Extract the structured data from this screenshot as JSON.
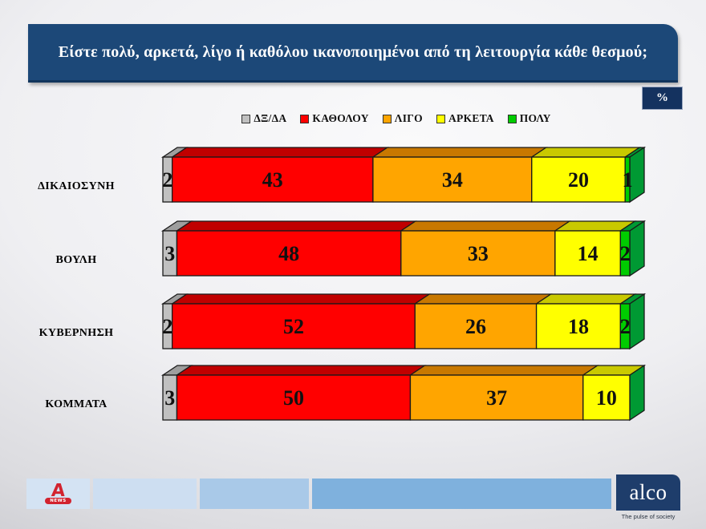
{
  "title": "Είστε πολύ, αρκετά, λίγο ή καθόλου ικανοποιημένοι από τη λειτουργία κάθε θεσμού;",
  "percent_label": "%",
  "chart_data": {
    "type": "bar",
    "subtype": "horizontal-stacked-3d",
    "xlim": [
      0,
      100
    ],
    "legend_position": "top-center",
    "categories": [
      "ΔΙΚΑΙΟΣΥΝΗ",
      "ΒΟΥΛΗ",
      "ΚΥΒΕΡΝΗΣΗ",
      "ΚΟΜΜΑΤΑ"
    ],
    "series": [
      {
        "name": "ΔΞ/ΔΑ",
        "color": "#C0C0C0",
        "dark": "#9e9e9e",
        "values": [
          2,
          3,
          2,
          3
        ]
      },
      {
        "name": "ΚΑΘΟΛΟΥ",
        "color": "#FF0000",
        "dark": "#C00000",
        "values": [
          43,
          48,
          52,
          50
        ]
      },
      {
        "name": "ΛΙΓΟ",
        "color": "#FFA500",
        "dark": "#C87800",
        "values": [
          34,
          33,
          26,
          37
        ]
      },
      {
        "name": "ΑΡΚΕΤΑ",
        "color": "#FFFF00",
        "dark": "#C9C900",
        "values": [
          20,
          14,
          18,
          10
        ]
      },
      {
        "name": "ΠΟΛΥ",
        "color": "#00CC00",
        "dark": "#009933",
        "values": [
          1,
          2,
          2,
          0
        ]
      }
    ]
  },
  "footer": {
    "alpha": {
      "letter": "A",
      "badge": "NEWS"
    },
    "boxes": [
      "#d4e3f3",
      "#cddef1",
      "#a9c9e8",
      "#7fb1dd"
    ],
    "alco": {
      "name": "alco",
      "tagline": "The pulse of society"
    }
  }
}
